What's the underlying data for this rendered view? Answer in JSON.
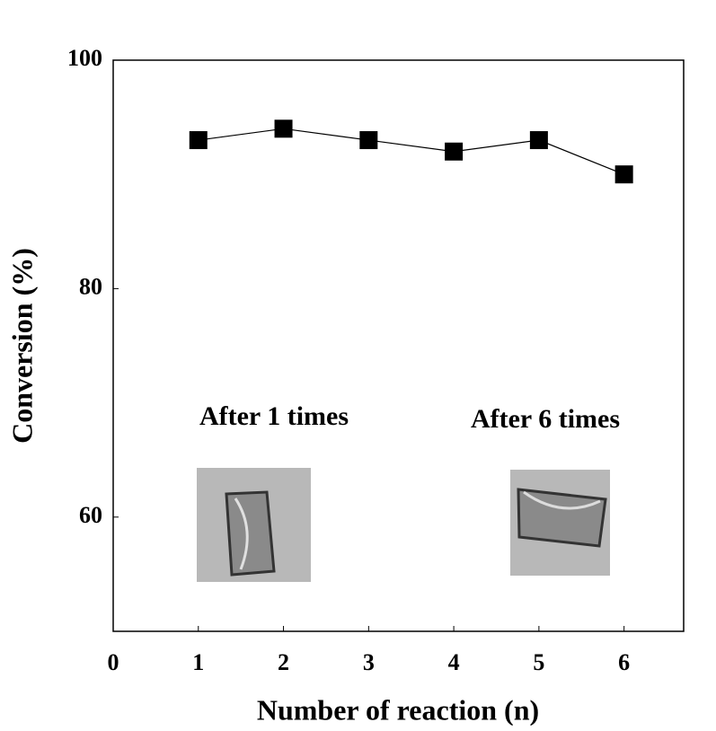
{
  "chart_data": {
    "type": "line",
    "x": [
      1,
      2,
      3,
      4,
      5,
      6
    ],
    "series": [
      {
        "color": "#000000",
        "values": [
          93,
          94,
          93,
          92,
          93,
          90
        ]
      }
    ],
    "xlim": [
      0,
      6.7
    ],
    "xticks": [
      0,
      1,
      2,
      3,
      4,
      5,
      6
    ],
    "ylim": [
      50,
      100
    ],
    "yticks": [
      60,
      80,
      100
    ],
    "x_label": "Number of reaction (n)",
    "y_label": "Conversion (%)",
    "annotations": [
      "After 1 times",
      "After 6 times"
    ],
    "grid": false
  }
}
